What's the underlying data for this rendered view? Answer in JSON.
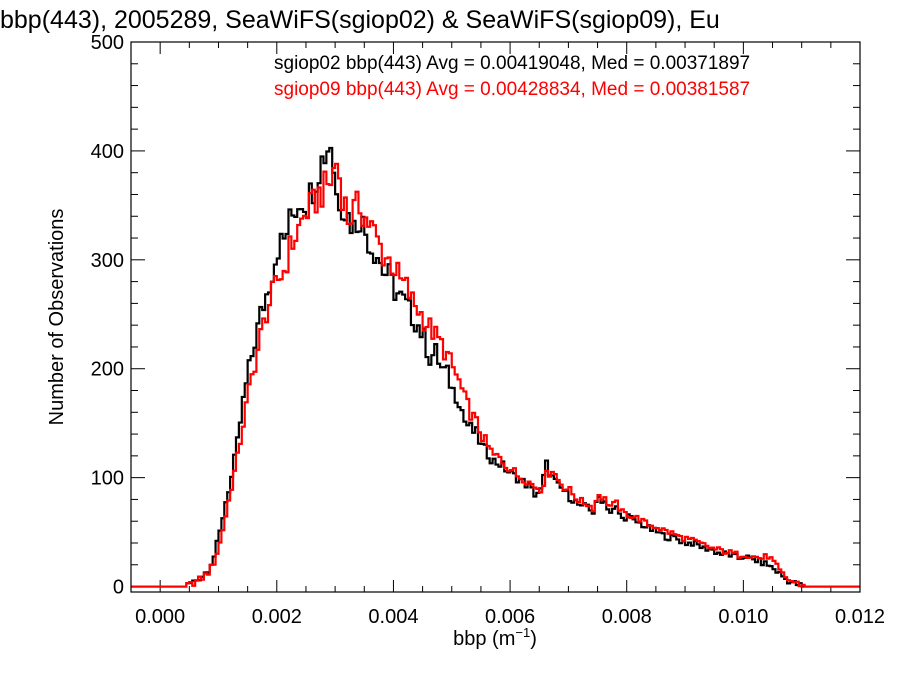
{
  "chart_data": {
    "type": "line",
    "step": true,
    "title": "bbp(443), 2005289, SeaWiFS(sgiop02) & SeaWiFS(sgiop09), Eu",
    "xlabel": "bbp (m",
    "xlabel_sup": "−1",
    "xlabel_close": ")",
    "ylabel": "Number of Observations",
    "xlim": [
      -0.0005,
      0.012
    ],
    "ylim": [
      -5,
      500
    ],
    "x_ticks": [
      0.0,
      0.002,
      0.004,
      0.006,
      0.008,
      0.01,
      0.012
    ],
    "x_tick_labels": [
      "0.000",
      "0.002",
      "0.004",
      "0.006",
      "0.008",
      "0.010",
      "0.012"
    ],
    "y_ticks": [
      0,
      100,
      200,
      300,
      400,
      500
    ],
    "y_tick_labels": [
      "0",
      "100",
      "200",
      "300",
      "400",
      "500"
    ],
    "grid": false,
    "legend_position": "top-right",
    "bin_width": 5e-05,
    "series": [
      {
        "name": "sgiop02",
        "color": "#000000",
        "legend_text": "sgiop02 bbp(443) Avg = 0.00419048, Med = 0.00371897",
        "points": [
          [
            -0.0005,
            0
          ],
          [
            0.0004,
            0
          ],
          [
            0.0005,
            3
          ],
          [
            0.0006,
            6
          ],
          [
            0.0007,
            10
          ],
          [
            0.0008,
            16
          ],
          [
            0.0009,
            28
          ],
          [
            0.001,
            50
          ],
          [
            0.0011,
            78
          ],
          [
            0.0012,
            100
          ],
          [
            0.0013,
            132
          ],
          [
            0.0014,
            170
          ],
          [
            0.0015,
            200
          ],
          [
            0.0016,
            225
          ],
          [
            0.0017,
            250
          ],
          [
            0.0018,
            268
          ],
          [
            0.0019,
            290
          ],
          [
            0.002,
            312
          ],
          [
            0.0021,
            318
          ],
          [
            0.0022,
            335
          ],
          [
            0.0023,
            348
          ],
          [
            0.0024,
            357
          ],
          [
            0.0025,
            352
          ],
          [
            0.0026,
            368
          ],
          [
            0.0027,
            385
          ],
          [
            0.0028,
            398
          ],
          [
            0.0029,
            409
          ],
          [
            0.003,
            360
          ],
          [
            0.0031,
            352
          ],
          [
            0.0032,
            340
          ],
          [
            0.0033,
            330
          ],
          [
            0.0034,
            340
          ],
          [
            0.0035,
            325
          ],
          [
            0.0036,
            312
          ],
          [
            0.0037,
            305
          ],
          [
            0.0038,
            290
          ],
          [
            0.0039,
            285
          ],
          [
            0.004,
            272
          ],
          [
            0.0041,
            265
          ],
          [
            0.0042,
            258
          ],
          [
            0.0043,
            248
          ],
          [
            0.0044,
            240
          ],
          [
            0.0045,
            228
          ],
          [
            0.0046,
            210
          ],
          [
            0.0047,
            215
          ],
          [
            0.0048,
            200
          ],
          [
            0.0049,
            195
          ],
          [
            0.005,
            180
          ],
          [
            0.0051,
            172
          ],
          [
            0.0052,
            152
          ],
          [
            0.0053,
            145
          ],
          [
            0.0054,
            140
          ],
          [
            0.0055,
            128
          ],
          [
            0.0056,
            122
          ],
          [
            0.0057,
            115
          ],
          [
            0.0058,
            113
          ],
          [
            0.0059,
            108
          ],
          [
            0.006,
            103
          ],
          [
            0.0061,
            100
          ],
          [
            0.0062,
            96
          ],
          [
            0.0063,
            92
          ],
          [
            0.0064,
            85
          ],
          [
            0.0065,
            88
          ],
          [
            0.0066,
            112
          ],
          [
            0.0067,
            100
          ],
          [
            0.0068,
            92
          ],
          [
            0.0069,
            88
          ],
          [
            0.007,
            82
          ],
          [
            0.0071,
            78
          ],
          [
            0.0072,
            72
          ],
          [
            0.0073,
            75
          ],
          [
            0.0074,
            68
          ],
          [
            0.0075,
            82
          ],
          [
            0.0076,
            78
          ],
          [
            0.0077,
            68
          ],
          [
            0.0078,
            72
          ],
          [
            0.0079,
            62
          ],
          [
            0.008,
            65
          ],
          [
            0.0081,
            60
          ],
          [
            0.0082,
            58
          ],
          [
            0.0083,
            55
          ],
          [
            0.0084,
            52
          ],
          [
            0.0085,
            50
          ],
          [
            0.0086,
            47
          ],
          [
            0.0087,
            45
          ],
          [
            0.0088,
            45
          ],
          [
            0.0089,
            42
          ],
          [
            0.009,
            40
          ],
          [
            0.0091,
            40
          ],
          [
            0.0092,
            38
          ],
          [
            0.0093,
            35
          ],
          [
            0.0094,
            35
          ],
          [
            0.0095,
            32
          ],
          [
            0.0096,
            30
          ],
          [
            0.0097,
            30
          ],
          [
            0.0098,
            28
          ],
          [
            0.0099,
            26
          ],
          [
            0.01,
            28
          ],
          [
            0.0101,
            25
          ],
          [
            0.0102,
            24
          ],
          [
            0.0103,
            22
          ],
          [
            0.0104,
            20
          ],
          [
            0.0105,
            16
          ],
          [
            0.0106,
            12
          ],
          [
            0.0107,
            7
          ],
          [
            0.0108,
            4
          ],
          [
            0.0109,
            2
          ],
          [
            0.011,
            0
          ],
          [
            0.012,
            0
          ]
        ]
      },
      {
        "name": "sgiop09",
        "color": "#ff0000",
        "legend_text": "sgiop09 bbp(443) Avg = 0.00428834, Med = 0.00381587",
        "points": [
          [
            -0.0005,
            0
          ],
          [
            0.0004,
            0
          ],
          [
            0.0005,
            2
          ],
          [
            0.0006,
            5
          ],
          [
            0.0007,
            8
          ],
          [
            0.0008,
            13
          ],
          [
            0.0009,
            22
          ],
          [
            0.001,
            40
          ],
          [
            0.0011,
            65
          ],
          [
            0.0012,
            92
          ],
          [
            0.0013,
            118
          ],
          [
            0.0014,
            150
          ],
          [
            0.0015,
            180
          ],
          [
            0.0016,
            205
          ],
          [
            0.0017,
            230
          ],
          [
            0.0018,
            252
          ],
          [
            0.0019,
            268
          ],
          [
            0.002,
            282
          ],
          [
            0.0021,
            290
          ],
          [
            0.0022,
            310
          ],
          [
            0.0023,
            322
          ],
          [
            0.0024,
            335
          ],
          [
            0.0025,
            345
          ],
          [
            0.0026,
            350
          ],
          [
            0.0027,
            360
          ],
          [
            0.0028,
            365
          ],
          [
            0.0029,
            372
          ],
          [
            0.003,
            390
          ],
          [
            0.0031,
            362
          ],
          [
            0.0032,
            338
          ],
          [
            0.0033,
            345
          ],
          [
            0.0034,
            350
          ],
          [
            0.0035,
            338
          ],
          [
            0.0036,
            330
          ],
          [
            0.0037,
            318
          ],
          [
            0.0038,
            305
          ],
          [
            0.0039,
            300
          ],
          [
            0.004,
            292
          ],
          [
            0.0041,
            280
          ],
          [
            0.0042,
            275
          ],
          [
            0.0043,
            262
          ],
          [
            0.0044,
            255
          ],
          [
            0.0045,
            245
          ],
          [
            0.0046,
            238
          ],
          [
            0.0047,
            230
          ],
          [
            0.0048,
            222
          ],
          [
            0.0049,
            212
          ],
          [
            0.005,
            200
          ],
          [
            0.0051,
            188
          ],
          [
            0.0052,
            172
          ],
          [
            0.0053,
            160
          ],
          [
            0.0054,
            150
          ],
          [
            0.0055,
            138
          ],
          [
            0.0056,
            128
          ],
          [
            0.0057,
            120
          ],
          [
            0.0058,
            118
          ],
          [
            0.0059,
            112
          ],
          [
            0.006,
            108
          ],
          [
            0.0061,
            102
          ],
          [
            0.0062,
            100
          ],
          [
            0.0063,
            96
          ],
          [
            0.0064,
            92
          ],
          [
            0.0065,
            90
          ],
          [
            0.0066,
            102
          ],
          [
            0.0067,
            108
          ],
          [
            0.0068,
            98
          ],
          [
            0.0069,
            92
          ],
          [
            0.007,
            88
          ],
          [
            0.0071,
            82
          ],
          [
            0.0072,
            78
          ],
          [
            0.0073,
            76
          ],
          [
            0.0074,
            72
          ],
          [
            0.0075,
            85
          ],
          [
            0.0076,
            80
          ],
          [
            0.0077,
            74
          ],
          [
            0.0078,
            76
          ],
          [
            0.0079,
            68
          ],
          [
            0.008,
            66
          ],
          [
            0.0081,
            64
          ],
          [
            0.0082,
            62
          ],
          [
            0.0083,
            58
          ],
          [
            0.0084,
            56
          ],
          [
            0.0085,
            55
          ],
          [
            0.0086,
            52
          ],
          [
            0.0087,
            50
          ],
          [
            0.0088,
            48
          ],
          [
            0.0089,
            45
          ],
          [
            0.009,
            44
          ],
          [
            0.0091,
            42
          ],
          [
            0.0092,
            40
          ],
          [
            0.0093,
            38
          ],
          [
            0.0094,
            36
          ],
          [
            0.0095,
            34
          ],
          [
            0.0096,
            33
          ],
          [
            0.0097,
            32
          ],
          [
            0.0098,
            30
          ],
          [
            0.0099,
            29
          ],
          [
            0.01,
            30
          ],
          [
            0.0101,
            28
          ],
          [
            0.0102,
            27
          ],
          [
            0.0103,
            26
          ],
          [
            0.0104,
            28
          ],
          [
            0.0105,
            22
          ],
          [
            0.0106,
            14
          ],
          [
            0.0107,
            8
          ],
          [
            0.0108,
            5
          ],
          [
            0.0109,
            3
          ],
          [
            0.011,
            1
          ],
          [
            0.0111,
            0
          ],
          [
            0.012,
            0
          ]
        ]
      }
    ]
  }
}
